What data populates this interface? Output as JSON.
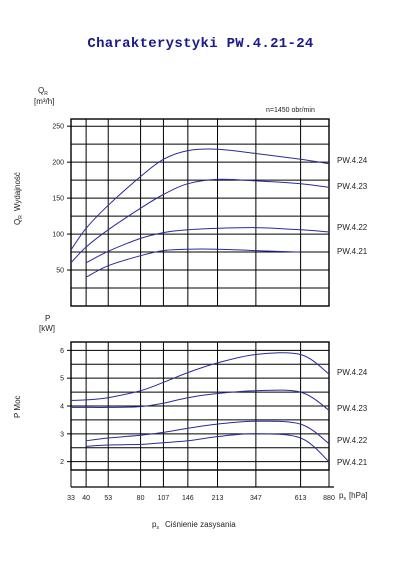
{
  "title": "Charakterystyki PW.4.21-24",
  "chart_data": [
    {
      "type": "line",
      "name": "flow",
      "ylabel_top": "Q",
      "ylabel_sub": "R",
      "ylabel_unit": "[m³/h]",
      "ylabel_side": "Q",
      "ylabel_side_sub": "R",
      "ylabel_side_text": "Wydajność",
      "annotation": "n=1450 obr/min",
      "ylim": [
        0,
        260
      ],
      "yticks": [
        50,
        100,
        150,
        200,
        250
      ],
      "xticks": [
        33,
        40,
        53,
        80,
        107,
        146,
        213,
        347,
        613,
        880
      ],
      "series": [
        {
          "name": "PW.4.24",
          "x": [
            33,
            40,
            53,
            80,
            107,
            146,
            213,
            347,
            613,
            880
          ],
          "y": [
            78,
            108,
            140,
            180,
            204,
            216,
            218,
            212,
            204,
            198
          ]
        },
        {
          "name": "PW.4.23",
          "x": [
            33,
            40,
            53,
            80,
            107,
            146,
            213,
            347,
            613,
            880
          ],
          "y": [
            60,
            82,
            106,
            136,
            155,
            170,
            176,
            174,
            170,
            165
          ]
        },
        {
          "name": "PW.4.22",
          "x": [
            40,
            53,
            80,
            107,
            146,
            213,
            347,
            613,
            880
          ],
          "y": [
            60,
            76,
            94,
            102,
            106,
            108,
            109,
            106,
            103
          ]
        },
        {
          "name": "PW.4.21",
          "x": [
            40,
            53,
            80,
            107,
            146,
            213,
            347,
            613
          ],
          "y": [
            40,
            56,
            70,
            77,
            79,
            79,
            77,
            75
          ]
        }
      ]
    },
    {
      "type": "line",
      "name": "power",
      "ylabel_top": "P",
      "ylabel_unit": "[kW]",
      "ylabel_side": "P  Moc",
      "ylim": [
        1.7,
        6.3
      ],
      "yticks": [
        2,
        3,
        4,
        5,
        6
      ],
      "xticks": [
        33,
        40,
        53,
        80,
        107,
        146,
        213,
        347,
        613,
        880
      ],
      "xlabel": "p",
      "xlabel_sub": "s",
      "xlabel_unit": "[hPa]",
      "xtitle": "p",
      "xtitle_sub": "s",
      "xtitle_text": "Ciśnienie zasysania",
      "series": [
        {
          "name": "PW.4.24",
          "x": [
            33,
            40,
            53,
            80,
            107,
            146,
            213,
            347,
            613,
            880
          ],
          "y": [
            4.2,
            4.22,
            4.3,
            4.55,
            4.85,
            5.2,
            5.55,
            5.85,
            5.85,
            5.15
          ]
        },
        {
          "name": "PW.4.23",
          "x": [
            33,
            40,
            53,
            80,
            107,
            146,
            213,
            347,
            613,
            880
          ],
          "y": [
            3.95,
            3.95,
            3.95,
            3.98,
            4.1,
            4.3,
            4.45,
            4.55,
            4.5,
            3.85
          ]
        },
        {
          "name": "PW.4.22",
          "x": [
            40,
            53,
            80,
            107,
            146,
            213,
            347,
            613,
            880
          ],
          "y": [
            2.75,
            2.85,
            2.95,
            3.05,
            3.2,
            3.35,
            3.45,
            3.35,
            2.65
          ]
        },
        {
          "name": "PW.4.21",
          "x": [
            40,
            53,
            80,
            107,
            146,
            213,
            347,
            613,
            880
          ],
          "y": [
            2.55,
            2.6,
            2.62,
            2.68,
            2.75,
            2.9,
            3.0,
            2.85,
            2.0
          ]
        }
      ]
    }
  ]
}
